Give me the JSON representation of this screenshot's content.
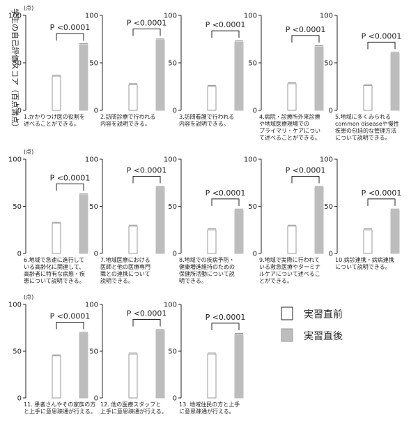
{
  "y_axis_title": "学生の自己評価スコア（百点満点）",
  "y_unit": "(点)",
  "legend": [
    {
      "label": "実習直前",
      "color": "#ffffff"
    },
    {
      "label": "実習直後",
      "color": "#bdbdbd"
    }
  ],
  "colors": {
    "before_fill": "#ffffff",
    "after_fill": "#bdbdbd",
    "stroke": "#999999",
    "axis": "#222222"
  },
  "chart_data": {
    "type": "bar",
    "ylim": [
      0,
      100
    ],
    "yticks": [
      0,
      50,
      100
    ],
    "series": [
      {
        "name": "実習直前"
      },
      {
        "name": "実習直後"
      }
    ],
    "panels": [
      {
        "id": 1,
        "label": [
          "1.かかりつけ医の役割を",
          "述べることができる。"
        ],
        "before": 36,
        "after": 69,
        "pvalue": "P <0.0001"
      },
      {
        "id": 2,
        "label": [
          "2.訪問診療で行われる",
          "内容を説明できる。"
        ],
        "before": 27,
        "after": 74,
        "pvalue": "P <0.0001"
      },
      {
        "id": 3,
        "label": [
          "3.訪問看護で行われる",
          "内容を説明できる。"
        ],
        "before": 25,
        "after": 72,
        "pvalue": "P <0.0001"
      },
      {
        "id": 4,
        "label": [
          "4.病院・診療所外来診療",
          "や地域医療現場での",
          "プライマリ・ケアについ",
          "て述べることができる。"
        ],
        "before": 28,
        "after": 67,
        "pvalue": "P <0.0001"
      },
      {
        "id": 5,
        "label": [
          "5.地域に多くみられる",
          "common diseaseや慢性",
          "疾患の包括的な管理方法",
          "について説明できる。"
        ],
        "before": 26,
        "after": 60,
        "pvalue": "P <0.0001"
      },
      {
        "id": 6,
        "label": [
          "6.地域で急速に進行して",
          "いる高齢化に関連して、",
          "高齢者に特有な病態・疾",
          "患について説明できる。"
        ],
        "before": 32,
        "after": 62,
        "pvalue": "P <0.0001"
      },
      {
        "id": 7,
        "label": [
          "7.地域医療における",
          "医師と他の医療専門",
          "職との連携について",
          "説明できる。"
        ],
        "before": 29,
        "after": 70,
        "pvalue": "P <0.0001"
      },
      {
        "id": 8,
        "label": [
          "8.地域での疾病予防・",
          "健康増進維持のための",
          "保健所活動について説",
          "明できる。"
        ],
        "before": 25,
        "after": 46,
        "pvalue": "P <0.0001"
      },
      {
        "id": 9,
        "label": [
          "9.地域で実際に行われて",
          "いる救急医療やターミナ",
          "ルケアについて述べるこ",
          "とができる。"
        ],
        "before": 29,
        "after": 70,
        "pvalue": "P <0.0001"
      },
      {
        "id": 10,
        "label": [
          "10.病診連携・病病連携",
          "について説明できる。"
        ],
        "before": 25,
        "after": 46,
        "pvalue": "P <0.0001"
      },
      {
        "id": 11,
        "label": [
          "11. 患者さんやその家族の方",
          "と上手に意思疎通が行える。"
        ],
        "before": 45,
        "after": 69,
        "pvalue": "P <0.0001"
      },
      {
        "id": 12,
        "label": [
          "12. 他の医療スタッフと",
          "上手に意思疎通が行える。"
        ],
        "before": 47,
        "after": 72,
        "pvalue": "P <0.0001"
      },
      {
        "id": 13,
        "label": [
          "13. 地域住民の方と上手",
          "に意思疎通が行える。"
        ],
        "before": 47,
        "after": 68,
        "pvalue": "P <0.0001"
      }
    ]
  }
}
